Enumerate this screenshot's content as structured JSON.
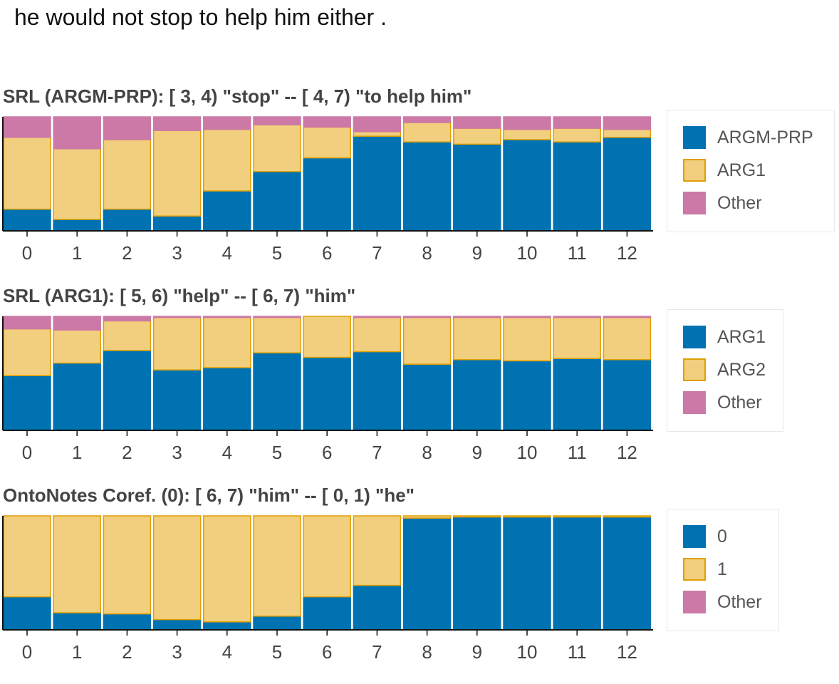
{
  "sentence": "he would not stop to help him either .",
  "colors": {
    "primary": "#0072b2",
    "secondary": "#f2cf7e",
    "secondary_stroke": "#e09f00",
    "other": "#cc79a7"
  },
  "chart_data": [
    {
      "type": "bar",
      "stacked": true,
      "title": "SRL (ARGM-PRP): [ 3, 4) \"stop\" -- [ 4, 7) \"to help him\"",
      "categories": [
        "0",
        "1",
        "2",
        "3",
        "4",
        "5",
        "6",
        "7",
        "8",
        "9",
        "10",
        "11",
        "12"
      ],
      "ylim": [
        0,
        1
      ],
      "series": [
        {
          "name": "ARGM-PRP",
          "values": [
            0.19,
            0.1,
            0.19,
            0.13,
            0.35,
            0.52,
            0.64,
            0.83,
            0.78,
            0.76,
            0.8,
            0.78,
            0.82
          ]
        },
        {
          "name": "ARG1",
          "values": [
            0.63,
            0.62,
            0.61,
            0.75,
            0.54,
            0.41,
            0.27,
            0.04,
            0.17,
            0.14,
            0.09,
            0.12,
            0.07
          ]
        },
        {
          "name": "Other",
          "values": [
            0.18,
            0.28,
            0.2,
            0.12,
            0.11,
            0.07,
            0.09,
            0.13,
            0.05,
            0.1,
            0.11,
            0.1,
            0.11
          ]
        }
      ],
      "legend_position": "right"
    },
    {
      "type": "bar",
      "stacked": true,
      "title": "SRL (ARG1): [ 5, 6) \"help\" -- [ 6, 7) \"him\"",
      "categories": [
        "0",
        "1",
        "2",
        "3",
        "4",
        "5",
        "6",
        "7",
        "8",
        "9",
        "10",
        "11",
        "12"
      ],
      "ylim": [
        0,
        1
      ],
      "series": [
        {
          "name": "ARG1",
          "values": [
            0.48,
            0.59,
            0.7,
            0.53,
            0.55,
            0.68,
            0.64,
            0.69,
            0.58,
            0.62,
            0.61,
            0.63,
            0.62
          ]
        },
        {
          "name": "ARG2",
          "values": [
            0.41,
            0.29,
            0.26,
            0.46,
            0.44,
            0.31,
            0.36,
            0.3,
            0.41,
            0.37,
            0.38,
            0.36,
            0.37
          ]
        },
        {
          "name": "Other",
          "values": [
            0.11,
            0.12,
            0.04,
            0.01,
            0.01,
            0.01,
            0.0,
            0.01,
            0.01,
            0.01,
            0.01,
            0.01,
            0.01
          ]
        }
      ],
      "legend_position": "right"
    },
    {
      "type": "bar",
      "stacked": true,
      "title": "OntoNotes Coref. (0): [ 6, 7) \"him\" -- [ 0, 1) \"he\"",
      "categories": [
        "0",
        "1",
        "2",
        "3",
        "4",
        "5",
        "6",
        "7",
        "8",
        "9",
        "10",
        "11",
        "12"
      ],
      "ylim": [
        0,
        1
      ],
      "series": [
        {
          "name": "0",
          "values": [
            0.29,
            0.15,
            0.14,
            0.09,
            0.07,
            0.12,
            0.29,
            0.39,
            0.98,
            0.99,
            0.99,
            0.99,
            0.99
          ]
        },
        {
          "name": "1",
          "values": [
            0.71,
            0.85,
            0.86,
            0.91,
            0.93,
            0.88,
            0.71,
            0.61,
            0.02,
            0.01,
            0.01,
            0.01,
            0.01
          ]
        },
        {
          "name": "Other",
          "values": [
            0.0,
            0.0,
            0.0,
            0.0,
            0.0,
            0.0,
            0.0,
            0.0,
            0.0,
            0.0,
            0.0,
            0.0,
            0.0
          ]
        }
      ],
      "legend_position": "right"
    }
  ]
}
